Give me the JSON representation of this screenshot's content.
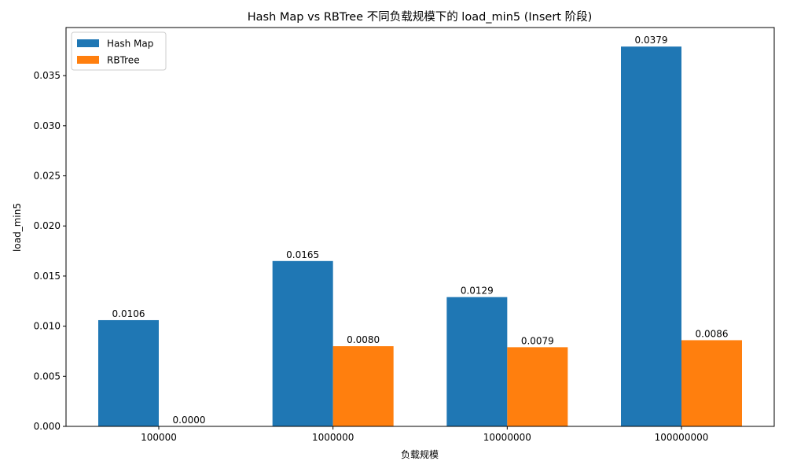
{
  "chart_data": {
    "type": "bar",
    "title": "Hash Map vs RBTree 不同负载规模下的 load_min5 (Insert 阶段)",
    "xlabel": "负载规模",
    "ylabel": "load_min5",
    "categories": [
      "100000",
      "1000000",
      "10000000",
      "100000000"
    ],
    "series": [
      {
        "name": "Hash Map",
        "color": "#1f77b4",
        "values": [
          0.0106,
          0.0165,
          0.0129,
          0.0379
        ]
      },
      {
        "name": "RBTree",
        "color": "#ff7f0e",
        "values": [
          0.0,
          0.008,
          0.0079,
          0.0086
        ]
      }
    ],
    "ylim": [
      0,
      0.0398
    ],
    "yticks": [
      0.0,
      0.005,
      0.01,
      0.015,
      0.02,
      0.025,
      0.03,
      0.035
    ],
    "ytick_labels": [
      "0.000",
      "0.005",
      "0.010",
      "0.015",
      "0.020",
      "0.025",
      "0.030",
      "0.035"
    ],
    "data_labels": [
      [
        "0.0106",
        "0.0165",
        "0.0129",
        "0.0379"
      ],
      [
        "0.0000",
        "0.0080",
        "0.0079",
        "0.0086"
      ]
    ],
    "legend_position": "top-left",
    "grid": false
  }
}
